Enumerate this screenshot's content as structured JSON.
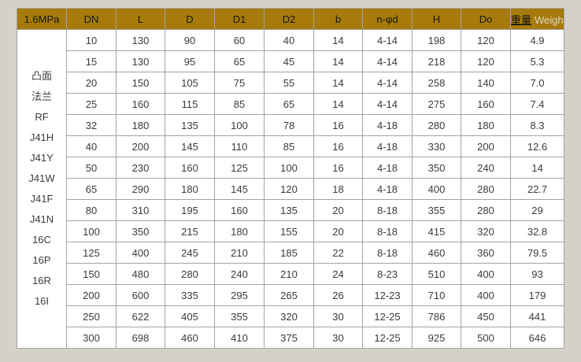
{
  "colors": {
    "header_bg": "#A67B0B",
    "page_bg": "#d5d1c9",
    "cell_bg": "#ffffff",
    "grid": "#a3a3a3",
    "header_text": "#151515",
    "cell_text": "#3b3b3b",
    "weight_en_text": "#ded9c6"
  },
  "table": {
    "header": {
      "cells": [
        "1.6MPa",
        "DN",
        "L",
        "D",
        "D1",
        "D2",
        "b",
        "n-φd",
        "H",
        "Do"
      ],
      "weight_cn": "重量",
      "weight_en": "Weight"
    },
    "left_label_lines": [
      "凸面",
      "法兰",
      "RF",
      "J41H",
      "J41Y",
      "J41W",
      "J41F",
      "J41N",
      "16C",
      "16P",
      "16R",
      "16I"
    ],
    "rows": [
      [
        "10",
        "130",
        "90",
        "60",
        "40",
        "14",
        "4-14",
        "198",
        "120",
        "4.9"
      ],
      [
        "15",
        "130",
        "95",
        "65",
        "45",
        "14",
        "4-14",
        "218",
        "120",
        "5.3"
      ],
      [
        "20",
        "150",
        "105",
        "75",
        "55",
        "14",
        "4-14",
        "258",
        "140",
        "7.0"
      ],
      [
        "25",
        "160",
        "115",
        "85",
        "65",
        "14",
        "4-14",
        "275",
        "160",
        "7.4"
      ],
      [
        "32",
        "180",
        "135",
        "100",
        "78",
        "16",
        "4-18",
        "280",
        "180",
        "8.3"
      ],
      [
        "40",
        "200",
        "145",
        "110",
        "85",
        "16",
        "4-18",
        "330",
        "200",
        "12.6"
      ],
      [
        "50",
        "230",
        "160",
        "125",
        "100",
        "16",
        "4-18",
        "350",
        "240",
        "14"
      ],
      [
        "65",
        "290",
        "180",
        "145",
        "120",
        "18",
        "4-18",
        "400",
        "280",
        "22.7"
      ],
      [
        "80",
        "310",
        "195",
        "160",
        "135",
        "20",
        "8-18",
        "355",
        "280",
        "29"
      ],
      [
        "100",
        "350",
        "215",
        "180",
        "155",
        "20",
        "8-18",
        "415",
        "320",
        "32.8"
      ],
      [
        "125",
        "400",
        "245",
        "210",
        "185",
        "22",
        "8-18",
        "460",
        "360",
        "79.5"
      ],
      [
        "150",
        "480",
        "280",
        "240",
        "210",
        "24",
        "8-23",
        "510",
        "400",
        "93"
      ],
      [
        "200",
        "600",
        "335",
        "295",
        "265",
        "26",
        "12-23",
        "710",
        "400",
        "179"
      ],
      [
        "250",
        "622",
        "405",
        "355",
        "320",
        "30",
        "12-25",
        "786",
        "450",
        "441"
      ],
      [
        "300",
        "698",
        "460",
        "410",
        "375",
        "30",
        "12-25",
        "925",
        "500",
        "646"
      ]
    ]
  }
}
